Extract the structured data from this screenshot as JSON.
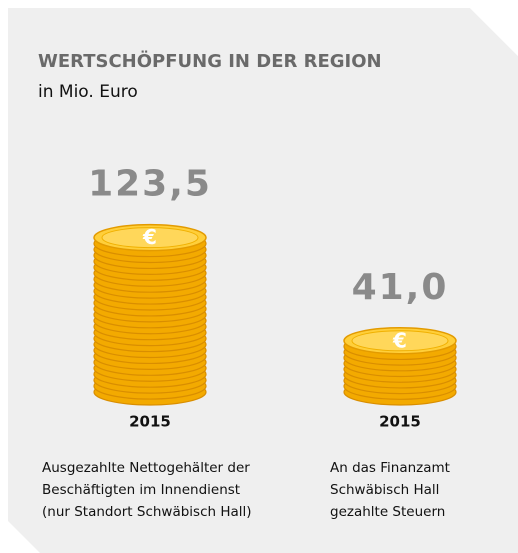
{
  "chart_data": {
    "type": "coin-stack",
    "title": "WERTSCHÖPFUNG IN DER REGION",
    "subtitle": "in Mio. Euro",
    "currency_symbol": "€",
    "categories": [
      "2015",
      "2015"
    ],
    "values": [
      123.5,
      41.0
    ],
    "value_labels": [
      "123,5",
      "41,0"
    ],
    "descriptions": [
      [
        "Ausgezahlte Nettogehälter der",
        "Beschäftigten im Innendienst",
        "(nur Standort Schwäbisch Hall)"
      ],
      [
        "An das Finanzamt",
        "Schwäbisch Hall",
        "gezahlte Steuern"
      ]
    ],
    "color": "#f3aa00"
  }
}
